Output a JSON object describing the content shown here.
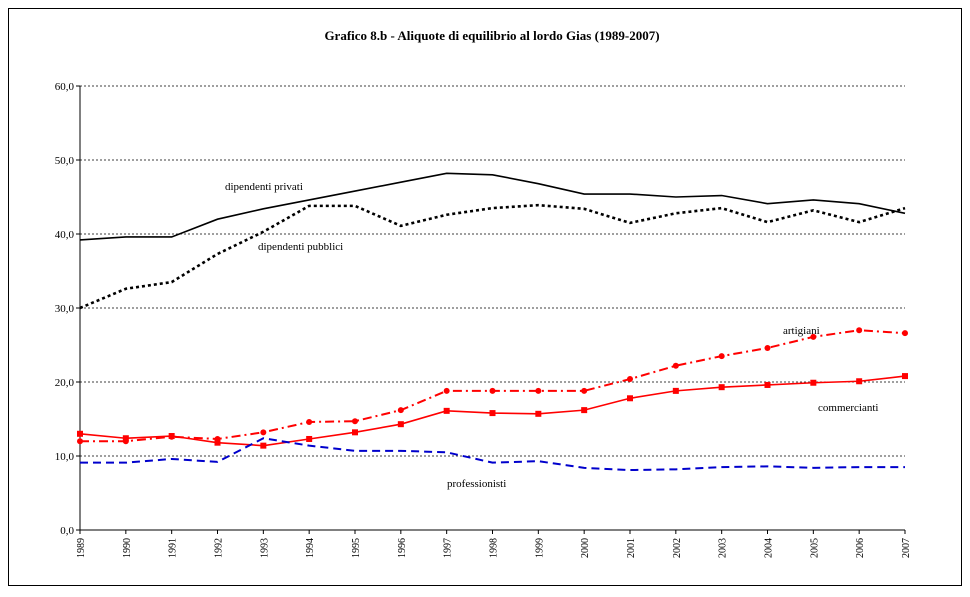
{
  "chart_data": {
    "type": "line",
    "title": "Grafico 8.b  -  Aliquote di equilibrio al lordo Gias (1989-2007)",
    "categories": [
      "1989",
      "1990",
      "1991",
      "1992",
      "1993",
      "1994",
      "1995",
      "1996",
      "1997",
      "1998",
      "1999",
      "2000",
      "2001",
      "2002",
      "2003",
      "2004",
      "2005",
      "2006",
      "2007"
    ],
    "ylim": [
      0,
      60
    ],
    "yticks": [
      {
        "value": 0,
        "label": "0,0"
      },
      {
        "value": 10,
        "label": "10,0"
      },
      {
        "value": 20,
        "label": "20,0"
      },
      {
        "value": 30,
        "label": "30,0"
      },
      {
        "value": 40,
        "label": "40,0"
      },
      {
        "value": 50,
        "label": "50,0"
      },
      {
        "value": 60,
        "label": "60,0"
      }
    ],
    "grid": true,
    "series": [
      {
        "name": "dipendenti privati",
        "color": "#000000",
        "style": "solid",
        "marker": "none",
        "values": [
          39.2,
          39.6,
          39.6,
          42.0,
          43.4,
          44.6,
          45.8,
          47.0,
          48.2,
          48.0,
          46.8,
          45.4,
          45.4,
          45.0,
          45.2,
          44.1,
          44.6,
          44.1,
          42.8
        ]
      },
      {
        "name": "dipendenti pubblici",
        "color": "#000000",
        "style": "dotted",
        "marker": "none",
        "values": [
          30.0,
          32.6,
          33.5,
          37.3,
          40.3,
          43.8,
          43.8,
          41.1,
          42.6,
          43.5,
          43.9,
          43.4,
          41.5,
          42.8,
          43.5,
          41.6,
          43.2,
          41.6,
          43.5
        ]
      },
      {
        "name": "artigiani",
        "color": "#ff0000",
        "style": "dashdot",
        "marker": "circle",
        "values": [
          12.0,
          12.0,
          12.6,
          12.3,
          13.2,
          14.6,
          14.7,
          16.2,
          18.8,
          18.8,
          18.8,
          18.8,
          20.4,
          22.2,
          23.5,
          24.6,
          26.1,
          27.0,
          26.6
        ]
      },
      {
        "name": "commercianti",
        "color": "#ff0000",
        "style": "solid",
        "marker": "square",
        "values": [
          13.0,
          12.4,
          12.7,
          11.8,
          11.4,
          12.3,
          13.2,
          14.3,
          16.1,
          15.8,
          15.7,
          16.2,
          17.8,
          18.8,
          19.3,
          19.6,
          19.9,
          20.1,
          20.8
        ]
      },
      {
        "name": "professionisti",
        "color": "#0000cc",
        "style": "dashed",
        "marker": "none",
        "values": [
          9.1,
          9.1,
          9.6,
          9.2,
          12.4,
          11.4,
          10.7,
          10.7,
          10.5,
          9.1,
          9.3,
          8.4,
          8.1,
          8.2,
          8.5,
          8.6,
          8.4,
          8.5,
          8.5
        ]
      }
    ]
  }
}
